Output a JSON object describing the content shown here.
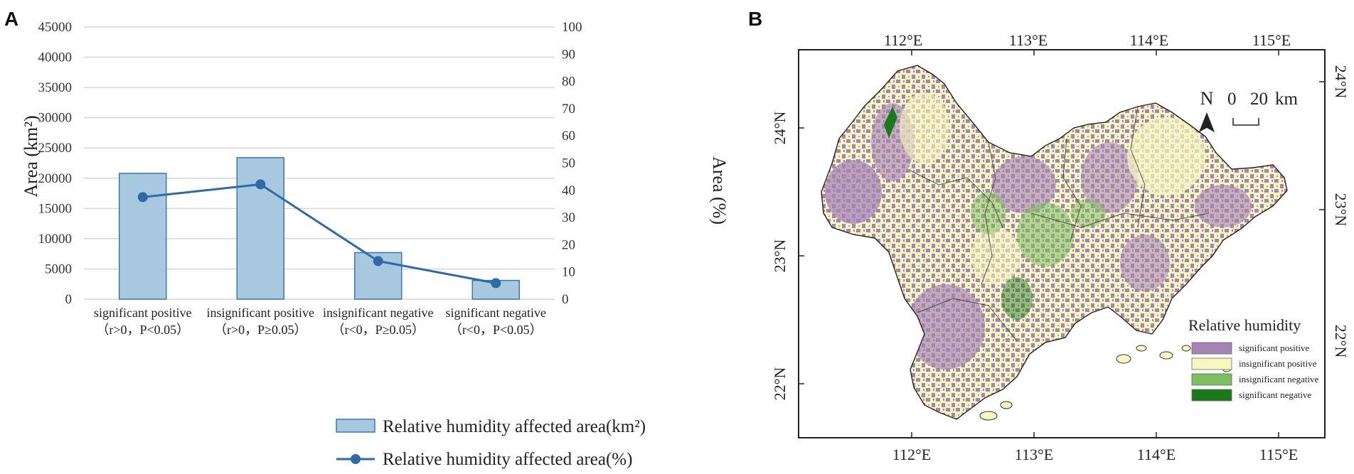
{
  "panels": {
    "left": "A",
    "right": "B"
  },
  "chart_data": {
    "type": "bar",
    "categories": [
      {
        "line1": "significant positive",
        "line2": "（r>0，P<0.05）"
      },
      {
        "line1": "insignificant positive",
        "line2": "（r>0，P≥0.05）"
      },
      {
        "line1": "insignificant negative",
        "line2": "（r<0，P≥0.05）"
      },
      {
        "line1": "significant negative",
        "line2": "（r<0，P<0.05）"
      }
    ],
    "series": [
      {
        "name": "Relative humidity affected area(km²)",
        "kind": "bar",
        "axis": "left",
        "values": [
          20800,
          23400,
          7700,
          3100
        ]
      },
      {
        "name": "Relative humidity affected area(%)",
        "kind": "line",
        "axis": "right",
        "values": [
          37.5,
          42.2,
          14.0,
          5.9
        ]
      }
    ],
    "ylabel_left": "Area (km²)",
    "ylabel_right": "Area (%)",
    "ylim_left": [
      0,
      45000
    ],
    "ylim_right": [
      0,
      100
    ],
    "yticks_left": [
      0,
      5000,
      10000,
      15000,
      20000,
      25000,
      30000,
      35000,
      40000,
      45000
    ],
    "yticks_right": [
      0,
      10,
      20,
      30,
      40,
      50,
      60,
      70,
      80,
      90,
      100
    ],
    "grid": true,
    "legend_position": "bottom"
  },
  "map": {
    "top_lon_labels": [
      "112°E",
      "113°E",
      "114°E",
      "115°E"
    ],
    "bottom_lon_labels": [
      "112°E",
      "113°E",
      "114°E",
      "115°E"
    ],
    "left_lat_labels": [
      "24°N",
      "23°N",
      "22°N"
    ],
    "right_lat_labels": [
      "24°N",
      "23°N",
      "22°N"
    ],
    "north_label": "N",
    "scale_zero": "0",
    "scale_label": "20",
    "scale_unit": "km",
    "legend_title": "Relative humidity",
    "legend_items": [
      {
        "label": "significant positive",
        "color": "#a583b5"
      },
      {
        "label": "insignificant positive",
        "color": "#f8f6c0"
      },
      {
        "label": "insignificant negative",
        "color": "#7cbf5e"
      },
      {
        "label": "significant negative",
        "color": "#1a7a1a"
      }
    ]
  }
}
